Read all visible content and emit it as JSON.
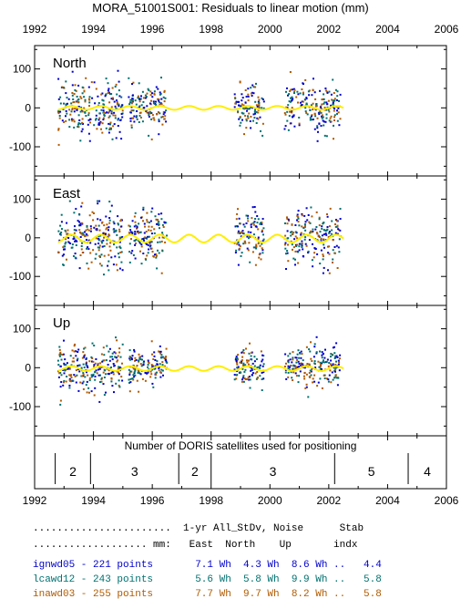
{
  "title": "MORA_51001S001: Residuals to linear motion (mm)",
  "chart_data": {
    "type": "scatter",
    "x_ticks": [
      "1992",
      "1994",
      "1996",
      "1998",
      "2000",
      "2002",
      "2004",
      "2006"
    ],
    "xlim": [
      1992,
      2006
    ],
    "panels": [
      {
        "name": "North",
        "ylim": [
          -175,
          160
        ],
        "y_ticks": [
          "100",
          "0",
          "-100"
        ],
        "clusters": [
          {
            "start": 1992.8,
            "end": 1995.0,
            "spread": 35
          },
          {
            "start": 1995.2,
            "end": 1996.5,
            "spread": 28
          },
          {
            "start": 1998.8,
            "end": 1999.8,
            "spread": 28
          },
          {
            "start": 2000.5,
            "end": 2002.4,
            "spread": 30
          }
        ],
        "seasonal": {
          "amplitude": 5,
          "offset": 0
        }
      },
      {
        "name": "East",
        "ylim": [
          -175,
          160
        ],
        "y_ticks": [
          "100",
          "0",
          "-100"
        ],
        "clusters": [
          {
            "start": 1992.8,
            "end": 1995.0,
            "spread": 40
          },
          {
            "start": 1995.2,
            "end": 1996.5,
            "spread": 35
          },
          {
            "start": 1998.8,
            "end": 1999.8,
            "spread": 35
          },
          {
            "start": 2000.5,
            "end": 2002.4,
            "spread": 35
          }
        ],
        "seasonal": {
          "amplitude": 10,
          "offset": -2
        }
      },
      {
        "name": "Up",
        "ylim": [
          -175,
          160
        ],
        "y_ticks": [
          "100",
          "0",
          "-100"
        ],
        "clusters": [
          {
            "start": 1992.8,
            "end": 1995.0,
            "spread": 30
          },
          {
            "start": 1995.2,
            "end": 1996.5,
            "spread": 25
          },
          {
            "start": 1998.8,
            "end": 1999.8,
            "spread": 25
          },
          {
            "start": 2000.5,
            "end": 2002.4,
            "spread": 25
          }
        ],
        "seasonal": {
          "amplitude": 6,
          "offset": -2
        }
      }
    ],
    "satellites": {
      "title": "Number of DORIS satellites used for positioning",
      "boundaries": [
        1992.7,
        1993.9,
        1996.9,
        1998.0,
        2002.2,
        2004.7
      ],
      "labels": [
        {
          "text": "2",
          "start": 1992.7,
          "end": 1993.9
        },
        {
          "text": "3",
          "start": 1993.9,
          "end": 1996.9
        },
        {
          "text": "2",
          "start": 1996.9,
          "end": 1998.0
        },
        {
          "text": "3",
          "start": 1998.0,
          "end": 2002.2
        },
        {
          "text": "5",
          "start": 2002.2,
          "end": 2004.7
        },
        {
          "text": "4",
          "start": 2004.7,
          "end": 2006.0
        }
      ]
    },
    "series": [
      {
        "name": "ignwd05",
        "points": 221,
        "color": "#0000cc"
      },
      {
        "name": "lcawd12",
        "points": 243,
        "color": "#007070"
      },
      {
        "name": "inawd03",
        "points": 255,
        "color": "#b05a00"
      }
    ],
    "seasonal_color": "#ffee00"
  },
  "table": {
    "header1": ".......................  1-yr All_StDv, Noise      Stab",
    "header2": "................... mm:   East  North    Up       indx",
    "rows": [
      {
        "label": "ignwd05 - 221 points",
        "values": "  7.1 Wh  4.3 Wh  8.6 Wh ..   4.4",
        "color": "#0000cc"
      },
      {
        "label": "lcawd12 - 243 points",
        "values": "  5.6 Wh  5.8 Wh  9.9 Wh ..   5.8",
        "color": "#007070"
      },
      {
        "label": "inawd03 - 255 points",
        "values": "  7.7 Wh  9.7 Wh  8.2 Wh ..   5.8",
        "color": "#b05a00"
      }
    ]
  }
}
